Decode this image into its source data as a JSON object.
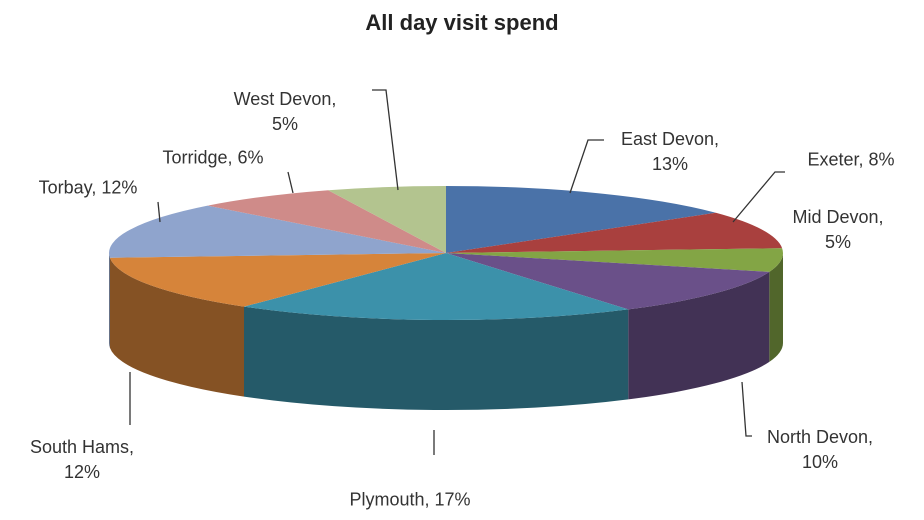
{
  "chart_data": {
    "type": "pie",
    "title": "All day visit spend",
    "categories": [
      "East Devon",
      "Exeter",
      "Mid Devon",
      "North Devon",
      "Plymouth",
      "South Hams",
      "Torbay",
      "Torridge",
      "West Devon"
    ],
    "values": [
      13,
      8,
      5,
      10,
      17,
      12,
      12,
      6,
      5
    ],
    "value_labels": [
      "13%",
      "8%",
      "5%",
      "10%",
      "17%",
      "12%",
      "12%",
      "6%",
      "5%"
    ],
    "colors": [
      "#4a72a8",
      "#a9403e",
      "#83a545",
      "#6a5089",
      "#3c91aa",
      "#d6843a",
      "#8fa4cd",
      "#cf8b89",
      "#b3c48f"
    ]
  }
}
